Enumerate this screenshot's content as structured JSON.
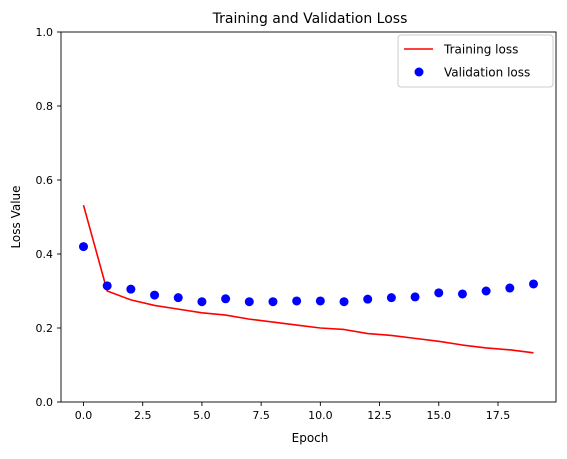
{
  "chart_data": {
    "type": "line",
    "title": "Training and Validation Loss",
    "xlabel": "Epoch",
    "ylabel": "Loss Value",
    "xlim": [
      -0.95,
      19.95
    ],
    "ylim": [
      0.0,
      1.0
    ],
    "x_ticks": [
      0.0,
      2.5,
      5.0,
      7.5,
      10.0,
      12.5,
      15.0,
      17.5
    ],
    "x_tick_labels": [
      "0.0",
      "2.5",
      "5.0",
      "7.5",
      "10.0",
      "12.5",
      "15.0",
      "17.5"
    ],
    "y_ticks": [
      0.0,
      0.2,
      0.4,
      0.6,
      0.8,
      1.0
    ],
    "y_tick_labels": [
      "0.0",
      "0.2",
      "0.4",
      "0.6",
      "0.8",
      "1.0"
    ],
    "grid": false,
    "legend_position": "top-right",
    "x": [
      0,
      1,
      2,
      3,
      4,
      5,
      6,
      7,
      8,
      9,
      10,
      11,
      12,
      13,
      14,
      15,
      16,
      17,
      18,
      19
    ],
    "series": [
      {
        "name": "Training loss",
        "style": "line",
        "color": "#ff0000",
        "values": [
          0.532,
          0.3,
          0.276,
          0.261,
          0.251,
          0.241,
          0.235,
          0.224,
          0.216,
          0.208,
          0.2,
          0.196,
          0.185,
          0.18,
          0.172,
          0.164,
          0.154,
          0.146,
          0.141,
          0.133
        ]
      },
      {
        "name": "Validation loss",
        "style": "markers",
        "color": "#0000ff",
        "values": [
          0.42,
          0.314,
          0.305,
          0.289,
          0.282,
          0.271,
          0.279,
          0.271,
          0.271,
          0.273,
          0.273,
          0.271,
          0.278,
          0.282,
          0.284,
          0.295,
          0.292,
          0.3,
          0.308,
          0.319
        ]
      }
    ]
  }
}
